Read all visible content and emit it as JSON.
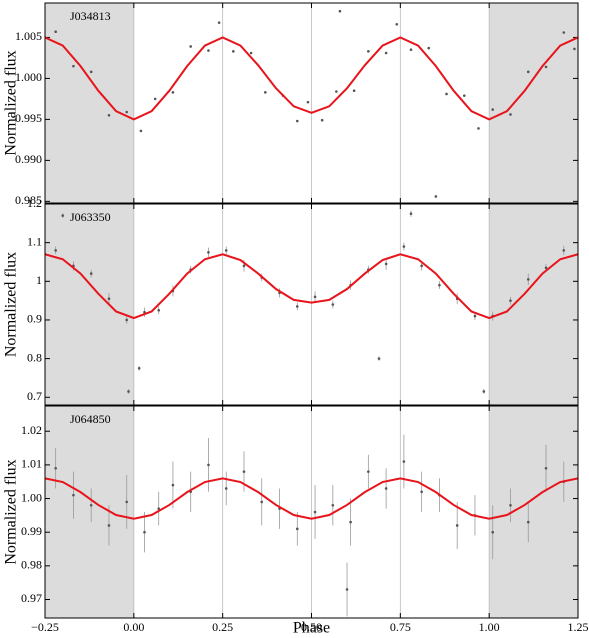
{
  "chart_data": [
    {
      "type": "scatter",
      "name": "J034813",
      "ylabel": "Normalized flux",
      "xlim": [
        -0.25,
        1.25
      ],
      "xticks": [
        -0.25,
        0,
        0.25,
        0.5,
        0.75,
        1,
        1.25
      ],
      "ylim": [
        0.9848,
        1.0092
      ],
      "yticks": [
        0.985,
        {
          "value": 0.99,
          "label": "0.990"
        },
        0.995,
        {
          "value": 1.0,
          "label": "1.000"
        },
        1.005
      ],
      "shade": [
        [
          -0.25,
          0
        ],
        [
          1,
          1.25
        ]
      ],
      "vlines": true,
      "points": {
        "color": "#555555",
        "x": [
          -0.22,
          -0.17,
          -0.12,
          -0.07,
          -0.02,
          0.02,
          0.06,
          0.11,
          0.16,
          0.21,
          0.24,
          0.28,
          0.33,
          0.37,
          0.42,
          0.46,
          0.49,
          0.53,
          0.57,
          0.62,
          0.66,
          0.71,
          0.74,
          0.78,
          0.83,
          0.88,
          0.93,
          0.97,
          1.01,
          1.06,
          1.11,
          1.16,
          1.21,
          1.24,
          0.85,
          0.58
        ],
        "values": [
          1.0057,
          1.0015,
          1.0008,
          0.9955,
          0.9959,
          0.9936,
          0.9975,
          0.9983,
          1.0039,
          1.0034,
          1.0068,
          1.0033,
          1.0031,
          0.9983,
          0.9979,
          0.9948,
          0.9971,
          0.9949,
          0.9984,
          0.9985,
          1.0033,
          1.0031,
          1.0066,
          1.0035,
          1.0037,
          0.9981,
          0.9979,
          0.9939,
          0.9962,
          0.9956,
          1.0008,
          1.0014,
          1.0056,
          1.0036,
          0.9856,
          1.0082
        ]
      },
      "model": {
        "color": "#e8141b",
        "x": [
          -0.25,
          -0.2,
          -0.15,
          -0.1,
          -0.05,
          0,
          0.05,
          0.1,
          0.15,
          0.2,
          0.25,
          0.3,
          0.35,
          0.4,
          0.45,
          0.5,
          0.55,
          0.6,
          0.65,
          0.7,
          0.75,
          0.8,
          0.85,
          0.9,
          0.95,
          1,
          1.05,
          1.1,
          1.15,
          1.2,
          1.25
        ],
        "values": [
          1.005,
          1.004,
          1.0015,
          0.9985,
          0.996,
          0.995,
          0.996,
          0.9985,
          1.0015,
          1.004,
          1.005,
          1.004,
          1.0016,
          0.9988,
          0.9966,
          0.9958,
          0.9966,
          0.9988,
          1.0016,
          1.004,
          1.005,
          1.004,
          1.0015,
          0.9985,
          0.996,
          0.995,
          0.996,
          0.9985,
          1.0015,
          1.004,
          1.005
        ]
      }
    },
    {
      "type": "scatter",
      "name": "J063350",
      "ylabel": "Normalized flux",
      "xlim": [
        -0.25,
        1.25
      ],
      "xticks": [
        -0.25,
        0,
        0.25,
        0.5,
        0.75,
        1,
        1.25
      ],
      "ylim": [
        0.68,
        1.2
      ],
      "yticks": [
        0.7,
        0.8,
        0.9,
        1,
        1.1,
        1.2
      ],
      "shade": [
        [
          -0.25,
          0
        ],
        [
          1,
          1.25
        ]
      ],
      "vlines": true,
      "points": {
        "color": "#555555",
        "x": [
          -0.22,
          -0.17,
          -0.12,
          -0.07,
          -0.02,
          0.03,
          0.07,
          0.11,
          0.16,
          0.21,
          0.26,
          0.31,
          0.36,
          0.41,
          0.46,
          0.51,
          0.56,
          0.61,
          0.66,
          0.71,
          0.76,
          0.81,
          0.86,
          0.91,
          0.96,
          1.01,
          1.06,
          1.11,
          1.16,
          1.21,
          0.015,
          -0.015,
          0.69,
          0.985,
          0.78,
          -0.2
        ],
        "values": [
          1.08,
          1.04,
          1.02,
          0.955,
          0.9,
          0.92,
          0.925,
          0.975,
          1.03,
          1.075,
          1.08,
          1.04,
          1.01,
          0.97,
          0.935,
          0.96,
          0.94,
          0.99,
          1.03,
          1.045,
          1.09,
          1.04,
          0.99,
          0.955,
          0.91,
          0.91,
          0.95,
          1.005,
          1.035,
          1.08,
          0.775,
          0.715,
          0.8,
          0.715,
          1.175,
          1.17
        ],
        "errors": [
          0.01,
          0.012,
          0.01,
          0.015,
          0.01,
          0.012,
          0.01,
          0.014,
          0.01,
          0.012,
          0.01,
          0.015,
          0.01,
          0.012,
          0.01,
          0.014,
          0.01,
          0.012,
          0.01,
          0.015,
          0.01,
          0.012,
          0.01,
          0.014,
          0.01,
          0.012,
          0.01,
          0.015,
          0.01,
          0.012,
          0.006,
          0.006,
          0.006,
          0.006,
          0.008,
          0.006
        ]
      },
      "model": {
        "color": "#e8141b",
        "x": [
          -0.25,
          -0.2,
          -0.15,
          -0.1,
          -0.05,
          0,
          0.05,
          0.1,
          0.15,
          0.2,
          0.25,
          0.3,
          0.35,
          0.4,
          0.45,
          0.5,
          0.55,
          0.6,
          0.65,
          0.7,
          0.75,
          0.8,
          0.85,
          0.9,
          0.95,
          1,
          1.05,
          1.1,
          1.15,
          1.2,
          1.25
        ],
        "values": [
          1.07,
          1.057,
          1.02,
          0.968,
          0.922,
          0.905,
          0.922,
          0.968,
          1.02,
          1.057,
          1.07,
          1.055,
          1.02,
          0.98,
          0.952,
          0.945,
          0.952,
          0.98,
          1.02,
          1.055,
          1.07,
          1.057,
          1.02,
          0.968,
          0.922,
          0.905,
          0.922,
          0.968,
          1.02,
          1.057,
          1.07
        ]
      }
    },
    {
      "type": "scatter",
      "name": "J064850",
      "ylabel": "Normalized flux",
      "xlabel": "Phase",
      "xlim": [
        -0.25,
        1.25
      ],
      "xticks": [
        {
          "value": -0.25,
          "label": "−0.25"
        },
        {
          "value": 0,
          "label": "0.00"
        },
        0.25,
        {
          "value": 0.5,
          "label": "0.50"
        },
        0.75,
        {
          "value": 1,
          "label": "1.00"
        },
        1.25
      ],
      "ylim": [
        0.9645,
        1.0275
      ],
      "yticks": [
        0.97,
        0.98,
        0.99,
        {
          "value": 1.0,
          "label": "1.00"
        },
        1.01,
        1.02
      ],
      "shade": [
        [
          -0.25,
          0
        ],
        [
          1,
          1.25
        ]
      ],
      "vlines": true,
      "points": {
        "color": "#555555",
        "x": [
          -0.22,
          -0.17,
          -0.12,
          -0.07,
          -0.02,
          0.03,
          0.07,
          0.11,
          0.16,
          0.21,
          0.26,
          0.31,
          0.36,
          0.41,
          0.46,
          0.51,
          0.56,
          0.61,
          0.66,
          0.71,
          0.76,
          0.81,
          0.86,
          0.91,
          0.96,
          1.01,
          1.06,
          1.11,
          1.16,
          1.21,
          0.6
        ],
        "values": [
          1.009,
          1.001,
          0.998,
          0.992,
          0.999,
          0.99,
          0.997,
          1.004,
          1.002,
          1.01,
          1.003,
          1.008,
          0.999,
          0.997,
          0.991,
          0.996,
          0.998,
          0.993,
          1.008,
          1.003,
          1.011,
          1.002,
          1.001,
          0.992,
          0.995,
          0.99,
          0.998,
          0.993,
          1.009,
          1.005,
          0.973
        ],
        "errors": [
          0.006,
          0.007,
          0.005,
          0.006,
          0.008,
          0.006,
          0.005,
          0.007,
          0.006,
          0.008,
          0.005,
          0.006,
          0.007,
          0.006,
          0.005,
          0.008,
          0.006,
          0.007,
          0.005,
          0.006,
          0.008,
          0.006,
          0.005,
          0.007,
          0.006,
          0.008,
          0.005,
          0.006,
          0.007,
          0.006,
          0.008
        ]
      },
      "model": {
        "color": "#e8141b",
        "x": [
          -0.25,
          -0.2,
          -0.15,
          -0.1,
          -0.05,
          0,
          0.05,
          0.1,
          0.15,
          0.2,
          0.25,
          0.3,
          0.35,
          0.4,
          0.45,
          0.5,
          0.55,
          0.6,
          0.65,
          0.7,
          0.75,
          0.8,
          0.85,
          0.9,
          0.95,
          1,
          1.05,
          1.1,
          1.15,
          1.2,
          1.25
        ],
        "values": [
          1.006,
          1.0049,
          1.0019,
          0.9981,
          0.9951,
          0.994,
          0.9951,
          0.9981,
          1.0019,
          1.0049,
          1.006,
          1.0049,
          1.0019,
          0.9981,
          0.9951,
          0.994,
          0.9951,
          0.9981,
          1.0019,
          1.0049,
          1.006,
          1.0049,
          1.0019,
          0.9981,
          0.9951,
          0.994,
          0.9951,
          0.9981,
          1.0019,
          1.0049,
          1.006
        ]
      }
    }
  ]
}
